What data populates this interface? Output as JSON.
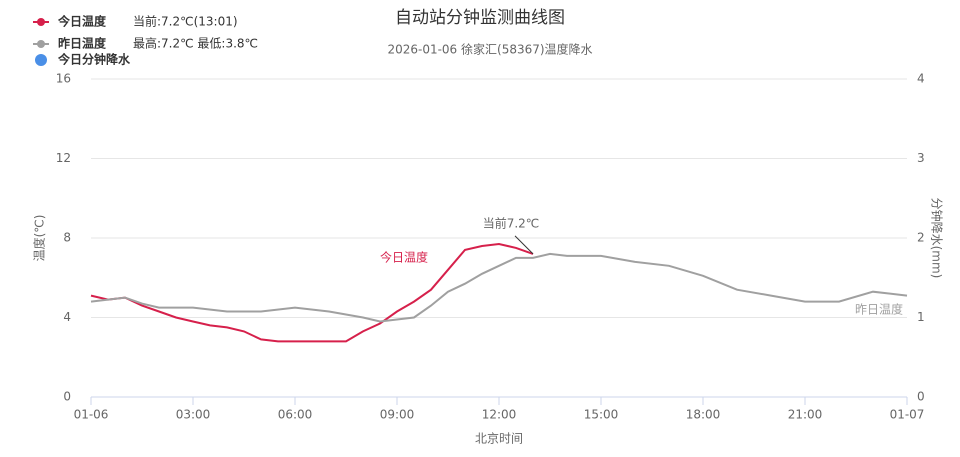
{
  "chart_data": {
    "type": "line",
    "title": "自动站分钟监测曲线图",
    "subtitle": "2026-01-06 徐家汇(58367)温度降水",
    "x_label": "北京时间",
    "y_label": "温度(℃)",
    "y2_label": "分钟降水(mm)",
    "xlim": [
      0,
      24
    ],
    "xticks": [
      {
        "value": 0,
        "label": "01-06"
      },
      {
        "value": 3,
        "label": "03:00"
      },
      {
        "value": 6,
        "label": "06:00"
      },
      {
        "value": 9,
        "label": "09:00"
      },
      {
        "value": 12,
        "label": "12:00"
      },
      {
        "value": 15,
        "label": "15:00"
      },
      {
        "value": 18,
        "label": "18:00"
      },
      {
        "value": 21,
        "label": "21:00"
      },
      {
        "value": 24,
        "label": "01-07"
      }
    ],
    "ylim": [
      0,
      16
    ],
    "yticks": [
      0,
      4,
      8,
      12,
      16
    ],
    "y2lim": [
      0,
      4
    ],
    "y2ticks": [
      0,
      1,
      2,
      3,
      4
    ],
    "grid": true,
    "series": [
      {
        "name": "今日温度",
        "color": "#d6204b",
        "legend_note": "当前:7.2℃(13:01)",
        "end_label": "今日温度",
        "x": [
          0,
          0.5,
          1,
          1.5,
          2,
          2.5,
          3,
          3.5,
          4,
          4.5,
          5,
          5.5,
          6,
          6.5,
          7,
          7.5,
          8,
          8.5,
          9,
          9.5,
          10,
          10.5,
          11,
          11.5,
          12,
          12.5,
          13
        ],
        "values": [
          5.1,
          4.9,
          5.0,
          4.6,
          4.3,
          4.0,
          3.8,
          3.6,
          3.5,
          3.3,
          2.9,
          2.8,
          2.8,
          2.8,
          2.8,
          2.8,
          3.3,
          3.7,
          4.3,
          4.8,
          5.4,
          6.4,
          7.4,
          7.6,
          7.7,
          7.5,
          7.2
        ]
      },
      {
        "name": "昨日温度",
        "color": "#a0a0a0",
        "legend_note": "最高:7.2℃ 最低:3.8℃",
        "end_label": "昨日温度",
        "x": [
          0,
          0.5,
          1,
          1.5,
          2,
          3,
          4,
          5,
          6,
          7,
          8,
          8.5,
          9,
          9.5,
          10,
          10.5,
          11,
          11.5,
          12,
          12.5,
          13,
          13.5,
          14,
          15,
          16,
          17,
          18,
          19,
          20,
          21,
          22,
          23,
          24
        ],
        "values": [
          4.8,
          4.9,
          5.0,
          4.7,
          4.5,
          4.5,
          4.3,
          4.3,
          4.5,
          4.3,
          4.0,
          3.8,
          3.9,
          4.0,
          4.6,
          5.3,
          5.7,
          6.2,
          6.6,
          7.0,
          7.0,
          7.2,
          7.1,
          7.1,
          6.8,
          6.6,
          6.1,
          5.4,
          5.1,
          4.8,
          4.8,
          5.3,
          5.1
        ]
      },
      {
        "name": "今日分钟降水",
        "color": "#4a8fe7",
        "axis": "y2",
        "x": [],
        "values": []
      }
    ],
    "annotation": "当前7.2℃"
  }
}
